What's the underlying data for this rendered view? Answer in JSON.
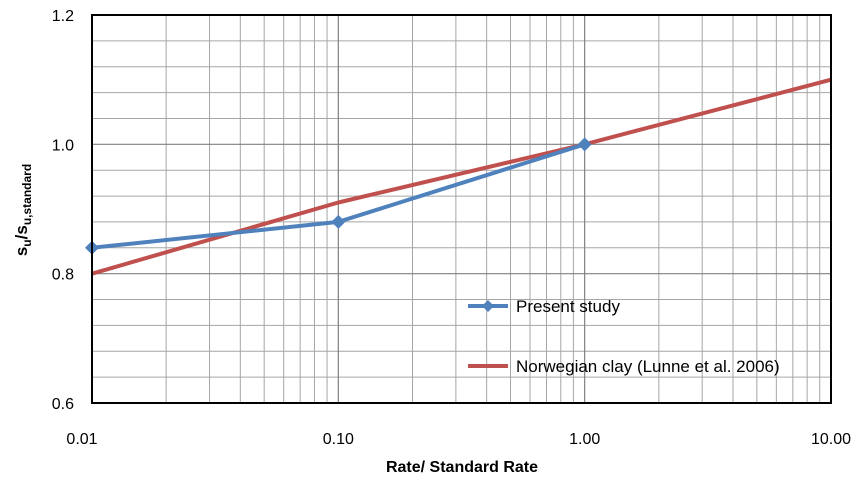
{
  "chart_data": {
    "type": "line",
    "xlabel": "Rate/ Standard Rate",
    "ylabel": "su/su,standard",
    "ylabel_parts": {
      "main": "s",
      "sub1": "u",
      "slash": "/s",
      "sub2": "u,standard"
    },
    "xscale": "log",
    "xlim": [
      0.01,
      10
    ],
    "ylim": [
      0.6,
      1.2
    ],
    "xticks": [
      0.01,
      0.1,
      1,
      10
    ],
    "xtick_labels": [
      "0.01",
      "0.10",
      "1.00",
      "10.00"
    ],
    "yticks": [
      0.6,
      0.8,
      1.0,
      1.2
    ],
    "ytick_labels": [
      "0.6",
      "0.8",
      "1.0",
      "1.2"
    ],
    "grid": true,
    "legend_position": "bottom-right",
    "series": [
      {
        "name": "Present study",
        "color": "#4F81BD",
        "marker": "diamond",
        "x": [
          0.01,
          0.1,
          1
        ],
        "y": [
          0.84,
          0.88,
          1.0
        ]
      },
      {
        "name": "Norwegian clay (Lunne et al. 2006)",
        "color": "#C0504D",
        "marker": "none",
        "x": [
          0.01,
          0.1,
          1,
          10
        ],
        "y": [
          0.8,
          0.91,
          1.0,
          1.1
        ]
      }
    ]
  }
}
